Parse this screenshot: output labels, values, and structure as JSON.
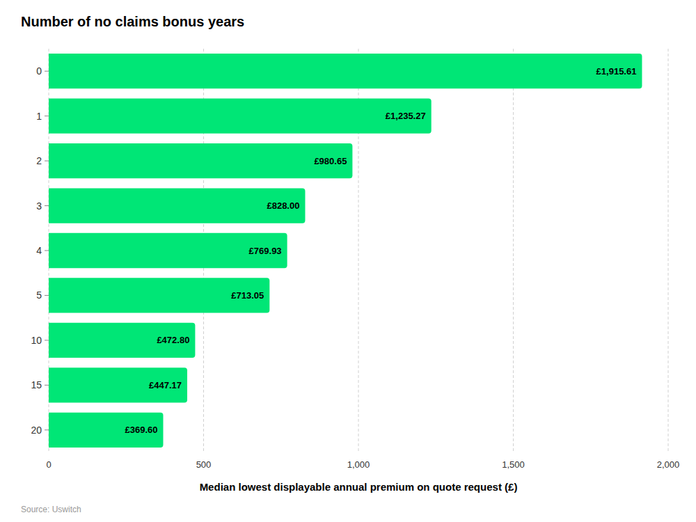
{
  "chart_data": {
    "type": "bar",
    "orientation": "horizontal",
    "title": "Number of no claims bonus years",
    "xlabel": "Median lowest displayable annual premium on quote request (£)",
    "source": "Source: Uswitch",
    "categories": [
      "0",
      "1",
      "2",
      "3",
      "4",
      "5",
      "10",
      "15",
      "20"
    ],
    "values": [
      1915.61,
      1235.27,
      980.65,
      828.0,
      769.93,
      713.05,
      472.8,
      447.17,
      369.6
    ],
    "value_labels": [
      "£1,915.61",
      "£1,235.27",
      "£980.65",
      "£828.00",
      "£769.93",
      "£713.05",
      "£472.80",
      "£447.17",
      "£369.60"
    ],
    "data_labels": true,
    "color": "#00E676",
    "xlim": [
      0,
      2000
    ],
    "xticks": [
      0,
      500,
      {
        "value": 1000,
        "label": "1,000"
      },
      {
        "value": 1500,
        "label": "1,500"
      },
      {
        "value": 2000,
        "label": "2,000"
      }
    ],
    "grid": true
  }
}
